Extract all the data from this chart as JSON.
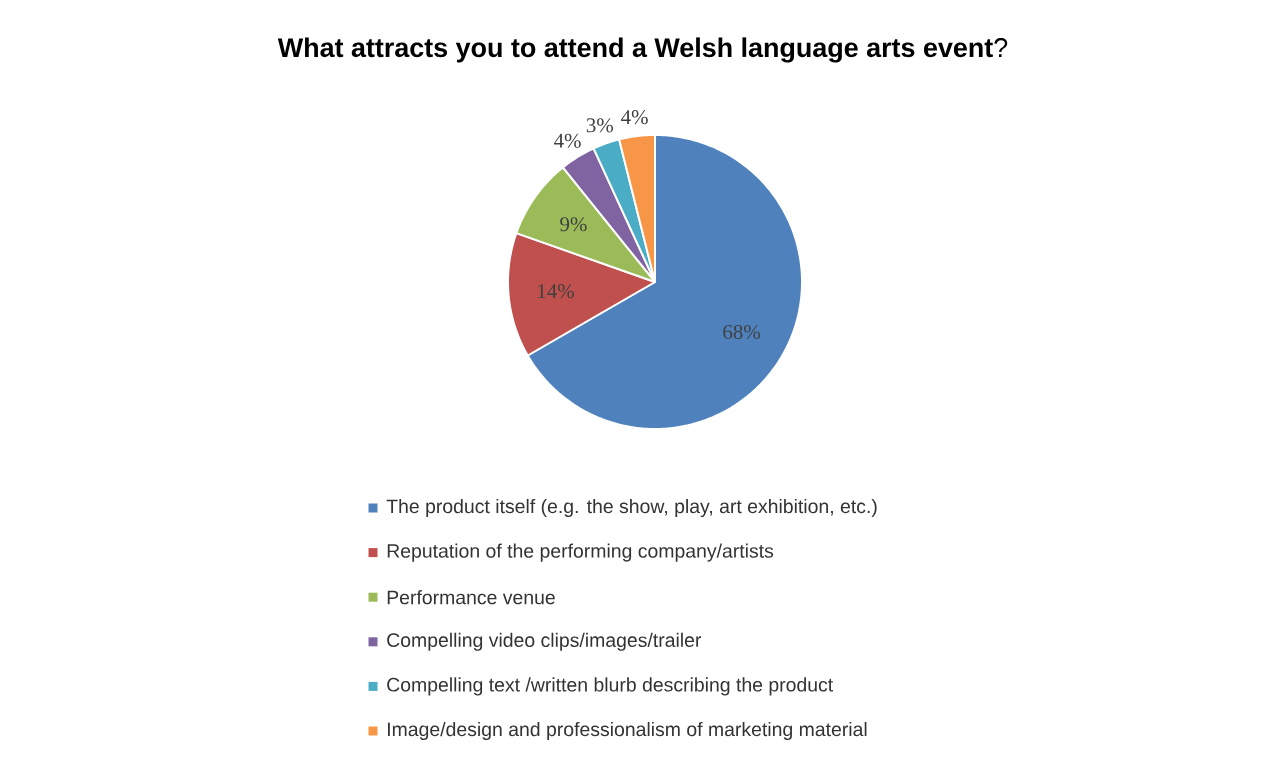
{
  "chart_data": {
    "type": "pie",
    "title": "**What attracts you to attend a Welsh language arts event**?",
    "categories": [
      "The product itself (e.g. the show, play, art exhibition, etc.)",
      "Reputation of the performing company/artists",
      "Performance venue",
      "Compelling video clips/images/trailer",
      "Compelling text /written blurb describing the product",
      "Image/design and professionalism of marketing material"
    ],
    "values": [
      68,
      14,
      9,
      4,
      3,
      4
    ],
    "value_labels": [
      "68%",
      "14%",
      "9%",
      "4%",
      "3%",
      "4%"
    ],
    "colors": [
      "#4f81bd",
      "#c0504d",
      "#9bbb59",
      "#8064a2",
      "#4bacc6",
      "#f79646"
    ],
    "legend": "bottom"
  }
}
